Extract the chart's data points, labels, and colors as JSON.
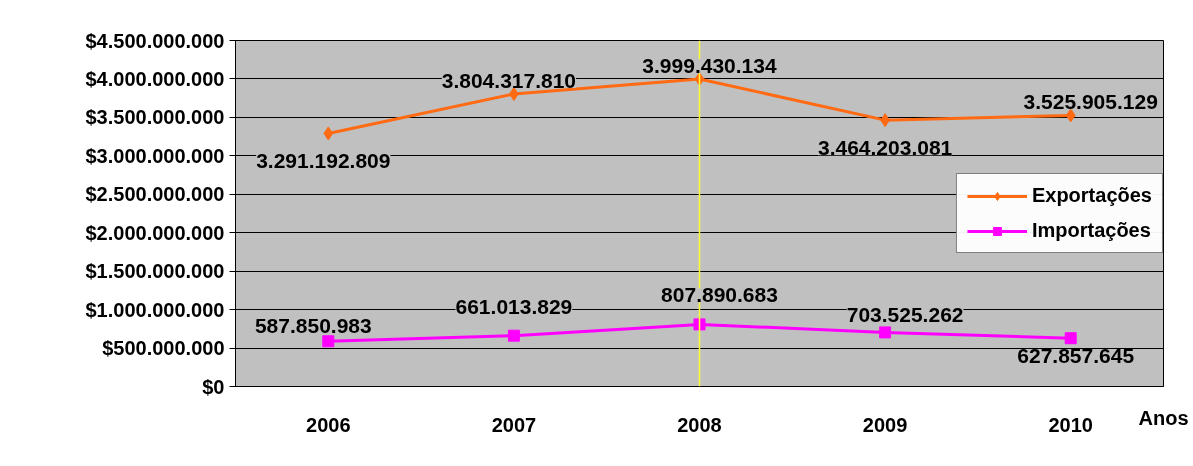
{
  "chart_data": {
    "type": "line",
    "categories": [
      "2006",
      "2007",
      "2008",
      "2009",
      "2010"
    ],
    "xlabel": "Anos",
    "series": [
      {
        "name": "Exportações",
        "color": "#ff6a13",
        "marker": "diamond",
        "values": [
          3291192809,
          3804317810,
          3999430134,
          3464203081,
          3525905129
        ],
        "value_labels": [
          "3.291.192.809",
          "3.804.317.810",
          "3.999.430.134",
          "3.464.203.081",
          "3.525.905.129"
        ]
      },
      {
        "name": "Importações",
        "color": "#ff00ff",
        "marker": "square",
        "values": [
          587850983,
          661013829,
          807890683,
          703525262,
          627857645
        ],
        "value_labels": [
          "587.850.983",
          "661.013.829",
          "807.890.683",
          "703.525.262",
          "627.857.645"
        ]
      }
    ],
    "ylim": [
      0,
      4500000000
    ],
    "yticks": [
      {
        "value": 0,
        "label": "$0"
      },
      {
        "value": 500000000,
        "label": "$500.000.000"
      },
      {
        "value": 1000000000,
        "label": "$1.000.000.000"
      },
      {
        "value": 1500000000,
        "label": "$1.500.000.000"
      },
      {
        "value": 2000000000,
        "label": "$2.000.000.000"
      },
      {
        "value": 2500000000,
        "label": "$2.500.000.000"
      },
      {
        "value": 3000000000,
        "label": "$3.000.000.000"
      },
      {
        "value": 3500000000,
        "label": "$3.500.000.000"
      },
      {
        "value": 4000000000,
        "label": "$4.000.000.000"
      },
      {
        "value": 4500000000,
        "label": "$4.500.000.000"
      }
    ],
    "ref_lines": [
      {
        "axis": "x",
        "value": "2008",
        "color": "#ffff33",
        "line_style": "solid"
      }
    ],
    "grid": "y",
    "legend": "right",
    "line_style": "solid"
  }
}
